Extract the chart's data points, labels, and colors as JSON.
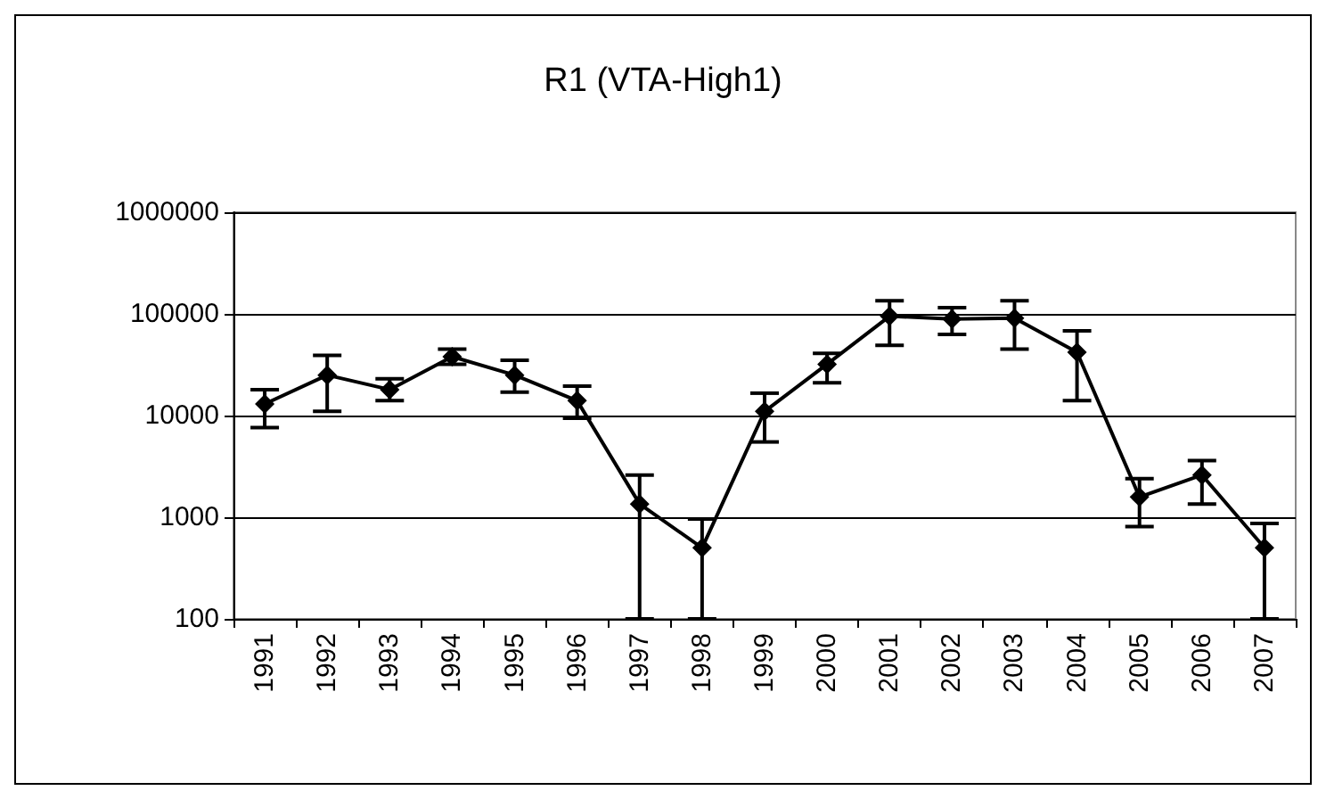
{
  "chart_data": {
    "type": "line",
    "title": "R1 (VTA-High1)",
    "categories": [
      "1991",
      "1992",
      "1993",
      "1994",
      "1995",
      "1996",
      "1997",
      "1998",
      "1999",
      "2000",
      "2001",
      "2002",
      "2003",
      "2004",
      "2005",
      "2006",
      "2007"
    ],
    "series": [
      {
        "color": "#000000",
        "values": [
          13000,
          25000,
          18000,
          38000,
          25000,
          14000,
          1350,
          500,
          11000,
          32000,
          95000,
          89000,
          91000,
          42000,
          1580,
          2600,
          500
        ],
        "errors": [
          [
            7600,
            18000
          ],
          [
            11000,
            39000
          ],
          [
            14000,
            23000
          ],
          [
            32000,
            45000
          ],
          [
            17000,
            35000
          ],
          [
            9400,
            19500
          ],
          [
            100,
            2600
          ],
          [
            100,
            960
          ],
          [
            5500,
            16600
          ],
          [
            21000,
            41000
          ],
          [
            49000,
            135000
          ],
          [
            63000,
            115000
          ],
          [
            45000,
            135000
          ],
          [
            14000,
            68000
          ],
          [
            810,
            2400
          ],
          [
            1350,
            3600
          ],
          [
            100,
            870
          ]
        ]
      }
    ],
    "log": "y",
    "ylim": [
      100,
      1000000
    ],
    "yticks": [
      100,
      1000,
      10000,
      100000,
      1000000
    ],
    "grid": "y",
    "marker": "diamond",
    "line_style": "solid"
  }
}
